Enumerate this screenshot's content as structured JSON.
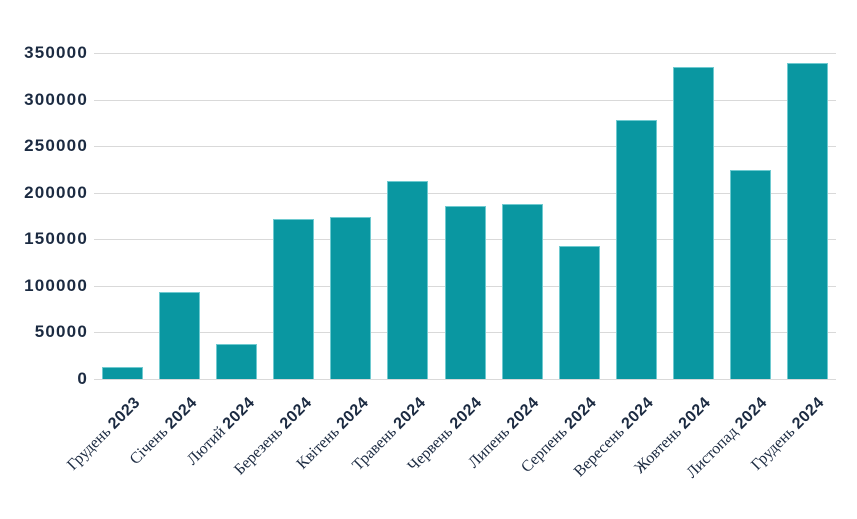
{
  "chart_data": {
    "type": "bar",
    "title": "",
    "xlabel": "",
    "ylabel": "",
    "categories": [
      "Грудень 2023",
      "Січень 2024",
      "Лютий 2024",
      "Березень 2024",
      "Квітень 2024",
      "Травень 2024",
      "Червень 2024",
      "Липень 2024",
      "Серпень 2024",
      "Вересень 2024",
      "Жовтень 2024",
      "Листопад 2024",
      "Грудень 2024"
    ],
    "values": [
      13000,
      93000,
      38000,
      172000,
      174000,
      213000,
      186000,
      188000,
      143000,
      278000,
      335000,
      224000,
      339000
    ],
    "ylim": [
      0,
      350000
    ],
    "y_ticks": [
      0,
      50000,
      100000,
      150000,
      200000,
      250000,
      300000,
      350000
    ],
    "grid": "horizontal",
    "legend": "none",
    "colors": {
      "bar_fill": "#0a97a1",
      "bar_border": "#6fcad0",
      "gridline": "#d9d9d9",
      "axis_text": "#1b2a41",
      "background": "#ffffff"
    }
  }
}
